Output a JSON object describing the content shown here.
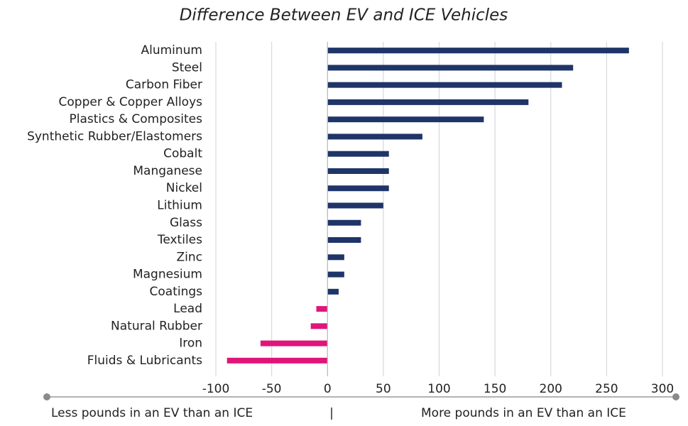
{
  "chart_data": {
    "type": "bar",
    "orientation": "horizontal",
    "subtitle": "Difference Between EV and ICE Vehicles",
    "categories": [
      "Aluminum",
      "Steel",
      "Carbon Fiber",
      "Copper & Copper Alloys",
      "Plastics & Composites",
      "Synthetic Rubber/Elastomers",
      "Cobalt",
      "Manganese",
      "Nickel",
      "Lithium",
      "Glass",
      "Textiles",
      "Zinc",
      "Magnesium",
      "Coatings",
      "Lead",
      "Natural Rubber",
      "Iron",
      "Fluids & Lubricants"
    ],
    "values": [
      270,
      220,
      210,
      180,
      140,
      85,
      55,
      55,
      55,
      50,
      30,
      30,
      15,
      15,
      10,
      -10,
      -15,
      -60,
      -90
    ],
    "colors": [
      "#1f3468",
      "#1f3468",
      "#1f3468",
      "#1f3468",
      "#1f3468",
      "#1f3468",
      "#1f3468",
      "#1f3468",
      "#1f3468",
      "#1f3468",
      "#1f3468",
      "#1f3468",
      "#1f3468",
      "#1f3468",
      "#1f3468",
      "#e0157a",
      "#e0157a",
      "#e0157a",
      "#e0157a"
    ],
    "xlim": [
      -100,
      300
    ],
    "xticks": [
      -100,
      -50,
      0,
      50,
      100,
      150,
      200,
      250,
      300
    ],
    "grid": true,
    "annotations": [
      "Less pounds in an EV than an ICE",
      "|",
      "More pounds in an EV than an ICE"
    ]
  }
}
